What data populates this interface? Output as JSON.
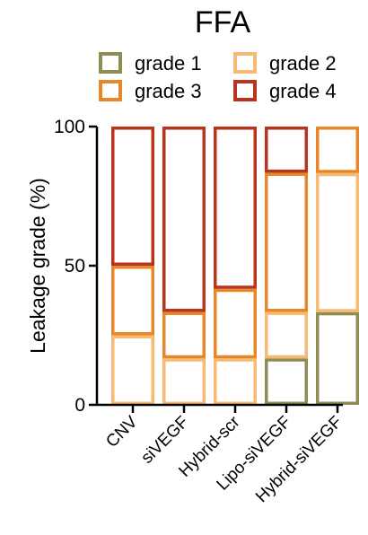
{
  "chart_data": {
    "type": "bar",
    "stacked": true,
    "title": "FFA",
    "ylabel": "Leakage grade  (%)",
    "xlabel": "",
    "ylim": [
      0,
      100
    ],
    "yticks": [
      0,
      50,
      100
    ],
    "categories": [
      "CNV",
      "siVEGF",
      "Hybrid-scr",
      "Lipo-siVEGF",
      "Hybrid-siVEGF"
    ],
    "series": [
      {
        "name": "grade 1",
        "color": "#8E8B55",
        "values": [
          0,
          0,
          0,
          16.7,
          33.3
        ]
      },
      {
        "name": "grade 2",
        "color": "#F6BA72",
        "values": [
          25,
          16.7,
          16.7,
          16.7,
          50
        ]
      },
      {
        "name": "grade 3",
        "color": "#E8862A",
        "values": [
          25,
          16.7,
          25,
          50,
          16.7
        ]
      },
      {
        "name": "grade 4",
        "color": "#B8341D",
        "values": [
          50,
          66.6,
          58.3,
          16.6,
          0
        ]
      }
    ],
    "legend_position": "top",
    "grid": false
  }
}
